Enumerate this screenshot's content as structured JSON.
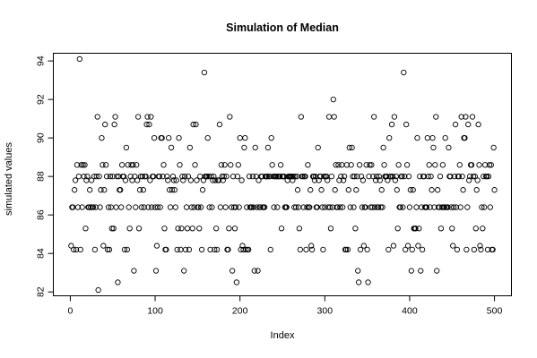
{
  "chart_data": {
    "type": "scatter",
    "title": "Simulation of Median",
    "xlabel": "Index",
    "ylabel": "simulated values",
    "xlim": [
      -20,
      520
    ],
    "ylim": [
      81.8,
      94.4
    ],
    "x_ticks": [
      0,
      100,
      200,
      300,
      400,
      500
    ],
    "y_ticks": [
      82,
      84,
      86,
      88,
      90,
      92,
      94
    ],
    "grid": false,
    "legend": "none",
    "series": [
      {
        "x": [
          1,
          2,
          3,
          4,
          5,
          6,
          7,
          8,
          9,
          10,
          11,
          12,
          13,
          14,
          15,
          16,
          17,
          18,
          19,
          20,
          21,
          22,
          23,
          24,
          25,
          26,
          27,
          28,
          29,
          30,
          31,
          32,
          33,
          34,
          35,
          36,
          37,
          38,
          39,
          40,
          41,
          42,
          43,
          44,
          45,
          46,
          47,
          48,
          49,
          50,
          51,
          52,
          53,
          54,
          55,
          56,
          57,
          58,
          59,
          60,
          61,
          62,
          63,
          64,
          65,
          66,
          67,
          68,
          69,
          70,
          71,
          72,
          73,
          74,
          75,
          76,
          77,
          78,
          79,
          80,
          81,
          82,
          83,
          84,
          85,
          86,
          87,
          88,
          89,
          90,
          91,
          92,
          93,
          94,
          95,
          96,
          97,
          98,
          99,
          100,
          101,
          102,
          103,
          104,
          105,
          106,
          107,
          108,
          109,
          110,
          111,
          112,
          113,
          114,
          115,
          116,
          117,
          118,
          119,
          120,
          121,
          122,
          123,
          124,
          125,
          126,
          127,
          128,
          129,
          130,
          131,
          132,
          133,
          134,
          135,
          136,
          137,
          138,
          139,
          140,
          141,
          142,
          143,
          144,
          145,
          146,
          147,
          148,
          149,
          150,
          151,
          152,
          153,
          154,
          155,
          156,
          157,
          158,
          159,
          160,
          161,
          162,
          163,
          164,
          165,
          166,
          167,
          168,
          169,
          170,
          171,
          172,
          173,
          174,
          175,
          176,
          177,
          178,
          179,
          180,
          181,
          182,
          183,
          184,
          185,
          186,
          187,
          188,
          189,
          190,
          191,
          192,
          193,
          194,
          195,
          196,
          197,
          198,
          199,
          200,
          201,
          202,
          203,
          204,
          205,
          206,
          207,
          208,
          209,
          210,
          211,
          212,
          213,
          214,
          215,
          216,
          217,
          218,
          219,
          220,
          221,
          222,
          223,
          224,
          225,
          226,
          227,
          228,
          229,
          230,
          231,
          232,
          233,
          234,
          235,
          236,
          237,
          238,
          239,
          240,
          241,
          242,
          243,
          244,
          245,
          246,
          247,
          248,
          249,
          250,
          251,
          252,
          253,
          254,
          255,
          256,
          257,
          258,
          259,
          260,
          261,
          262,
          263,
          264,
          265,
          266,
          267,
          268,
          269,
          270,
          271,
          272,
          273,
          274,
          275,
          276,
          277,
          278,
          279,
          280,
          281,
          282,
          283,
          284,
          285,
          286,
          287,
          288,
          289,
          290,
          291,
          292,
          293,
          294,
          295,
          296,
          297,
          298,
          299,
          300,
          301,
          302,
          303,
          304,
          305,
          306,
          307,
          308,
          309,
          310,
          311,
          312,
          313,
          314,
          315,
          316,
          317,
          318,
          319,
          320,
          321,
          322,
          323,
          324,
          325,
          326,
          327,
          328,
          329,
          330,
          331,
          332,
          333,
          334,
          335,
          336,
          337,
          338,
          339,
          340,
          341,
          342,
          343,
          344,
          345,
          346,
          347,
          348,
          349,
          350,
          351,
          352,
          353,
          354,
          355,
          356,
          357,
          358,
          359,
          360,
          361,
          362,
          363,
          364,
          365,
          366,
          367,
          368,
          369,
          370,
          371,
          372,
          373,
          374,
          375,
          376,
          377,
          378,
          379,
          380,
          381,
          382,
          383,
          384,
          385,
          386,
          387,
          388,
          389,
          390,
          391,
          392,
          393,
          394,
          395,
          396,
          397,
          398,
          399,
          400,
          401,
          402,
          403,
          404,
          405,
          406,
          407,
          408,
          409,
          410,
          411,
          412,
          413,
          414,
          415,
          416,
          417,
          418,
          419,
          420,
          421,
          422,
          423,
          424,
          425,
          426,
          427,
          428,
          429,
          430,
          431,
          432,
          433,
          434,
          435,
          436,
          437,
          438,
          439,
          440,
          441,
          442,
          443,
          444,
          445,
          446,
          447,
          448,
          449,
          450,
          451,
          452,
          453,
          454,
          455,
          456,
          457,
          458,
          459,
          460,
          461,
          462,
          463,
          464,
          465,
          466,
          467,
          468,
          469,
          470,
          471,
          472,
          473,
          474,
          475,
          476,
          477,
          478,
          479,
          480,
          481,
          482,
          483,
          484,
          485,
          486,
          487,
          488,
          489,
          490,
          491,
          492,
          493,
          494,
          495,
          496,
          497,
          498,
          499,
          500
        ],
        "y": [
          84.4,
          86.4,
          86.4,
          84.2,
          87.3,
          87.8,
          84.2,
          88.6,
          86.4,
          88.0,
          94.1,
          84.2,
          88.6,
          86.4,
          88.6,
          88.0,
          88.6,
          85.3,
          87.8,
          88.0,
          86.4,
          86.4,
          87.3,
          86.4,
          87.8,
          86.4,
          86.4,
          88.0,
          84.2,
          86.4,
          88.0,
          91.1,
          82.1,
          88.0,
          86.4,
          87.3,
          90.0,
          88.6,
          84.4,
          87.3,
          90.7,
          88.6,
          88.0,
          84.2,
          86.4,
          84.2,
          88.0,
          86.4,
          85.3,
          88.0,
          85.3,
          90.7,
          91.1,
          86.4,
          88.0,
          82.5,
          88.0,
          87.3,
          87.3,
          86.4,
          88.6,
          88.0,
          88.0,
          84.2,
          87.8,
          89.5,
          84.2,
          88.6,
          86.4,
          85.3,
          88.0,
          88.6,
          87.8,
          88.6,
          83.1,
          88.0,
          86.4,
          88.6,
          87.8,
          91.1,
          85.3,
          87.3,
          88.0,
          86.4,
          88.0,
          87.3,
          86.4,
          88.0,
          88.0,
          90.7,
          91.1,
          86.4,
          90.7,
          87.8,
          91.1,
          86.4,
          88.0,
          88.0,
          90.0,
          86.4,
          83.1,
          84.4,
          86.4,
          88.0,
          88.0,
          86.4,
          90.0,
          90.0,
          88.0,
          88.6,
          85.3,
          84.2,
          84.2,
          88.0,
          87.8,
          90.0,
          87.3,
          86.4,
          89.5,
          87.3,
          88.0,
          87.8,
          87.3,
          86.4,
          87.8,
          84.2,
          85.3,
          90.0,
          88.6,
          84.2,
          85.3,
          88.0,
          87.8,
          83.1,
          88.0,
          84.2,
          86.4,
          85.3,
          88.0,
          84.2,
          89.5,
          87.8,
          86.4,
          85.3,
          90.7,
          86.4,
          88.6,
          90.7,
          87.8,
          86.4,
          86.4,
          85.3,
          88.0,
          86.4,
          84.2,
          87.3,
          87.8,
          93.4,
          88.0,
          88.0,
          88.0,
          90.0,
          88.0,
          86.4,
          84.2,
          88.0,
          86.4,
          87.8,
          88.0,
          84.2,
          87.8,
          85.3,
          84.2,
          87.8,
          87.8,
          90.7,
          86.4,
          88.6,
          88.0,
          87.8,
          88.0,
          88.6,
          86.4,
          88.0,
          84.2,
          84.2,
          85.3,
          91.1,
          88.6,
          86.4,
          83.1,
          88.0,
          86.4,
          85.3,
          86.4,
          82.5,
          88.0,
          88.6,
          86.4,
          90.0,
          84.2,
          87.8,
          84.4,
          84.2,
          89.5,
          90.0,
          84.2,
          86.4,
          84.2,
          84.2,
          88.0,
          86.4,
          86.4,
          86.4,
          88.0,
          86.4,
          83.1,
          89.5,
          88.0,
          86.4,
          83.1,
          87.8,
          86.4,
          86.4,
          88.0,
          88.0,
          86.4,
          86.4,
          86.4,
          88.0,
          88.0,
          88.0,
          89.5,
          88.0,
          88.0,
          84.2,
          90.0,
          88.6,
          88.0,
          86.4,
          88.0,
          88.0,
          88.0,
          86.4,
          88.0,
          88.0,
          88.0,
          88.6,
          85.3,
          88.0,
          88.0,
          88.0,
          86.4,
          86.4,
          86.4,
          87.8,
          88.0,
          88.0,
          88.0,
          88.0,
          88.0,
          87.8,
          88.0,
          86.4,
          88.0,
          86.4,
          88.0,
          87.3,
          86.4,
          85.3,
          84.2,
          91.1,
          88.0,
          88.0,
          86.4,
          88.0,
          88.0,
          84.2,
          86.4,
          88.6,
          86.4,
          86.4,
          87.3,
          84.4,
          84.2,
          88.0,
          88.0,
          87.8,
          88.0,
          86.4,
          86.4,
          89.5,
          87.8,
          88.0,
          88.0,
          87.3,
          86.4,
          84.2,
          88.0,
          86.4,
          88.0,
          88.0,
          87.8,
          86.4,
          91.1,
          86.4,
          85.3,
          88.0,
          86.4,
          92.0,
          91.1,
          87.3,
          88.6,
          86.4,
          86.4,
          88.6,
          87.8,
          86.4,
          88.0,
          88.6,
          86.4,
          87.8,
          88.0,
          84.2,
          84.2,
          88.6,
          84.2,
          87.3,
          89.5,
          86.4,
          88.6,
          89.5,
          88.0,
          86.4,
          88.0,
          85.3,
          87.3,
          88.0,
          83.1,
          82.5,
          88.6,
          84.2,
          88.0,
          86.4,
          87.8,
          84.4,
          86.4,
          86.4,
          88.6,
          84.2,
          82.5,
          88.0,
          88.6,
          86.4,
          88.6,
          86.4,
          88.0,
          91.1,
          86.4,
          87.8,
          88.0,
          86.4,
          86.4,
          88.0,
          87.8,
          86.4,
          87.3,
          86.4,
          89.5,
          88.6,
          88.0,
          88.0,
          88.0,
          87.8,
          84.2,
          90.0,
          88.0,
          88.0,
          90.7,
          88.0,
          84.4,
          91.1,
          87.8,
          88.0,
          87.3,
          85.3,
          88.6,
          86.4,
          86.4,
          88.0,
          88.0,
          86.4,
          93.4,
          88.0,
          84.2,
          90.7,
          88.6,
          84.4,
          88.0,
          86.4,
          87.3,
          83.1,
          84.2,
          87.3,
          85.3,
          85.3,
          85.3,
          86.4,
          90.0,
          84.4,
          85.3,
          88.0,
          83.1,
          86.4,
          84.2,
          88.0,
          88.0,
          86.4,
          86.4,
          86.4,
          90.0,
          88.0,
          88.6,
          86.4,
          88.0,
          87.3,
          90.0,
          89.5,
          86.4,
          88.6,
          91.1,
          83.1,
          87.3,
          86.4,
          86.4,
          88.0,
          85.3,
          86.4,
          88.6,
          86.4,
          86.4,
          90.0,
          86.4,
          86.4,
          86.4,
          89.5,
          88.0,
          88.0,
          86.4,
          85.3,
          84.4,
          86.4,
          88.0,
          90.7,
          86.4,
          84.2,
          88.0,
          88.0,
          88.6,
          86.4,
          91.1,
          88.0,
          87.3,
          90.0,
          90.0,
          91.1,
          84.2,
          86.4,
          90.7,
          87.8,
          88.0,
          88.6,
          88.6,
          91.1,
          88.0,
          84.2,
          88.0,
          85.3,
          87.3,
          87.8,
          90.7,
          88.6,
          84.4,
          84.2,
          86.4,
          85.3,
          88.0,
          86.4,
          88.6,
          88.0,
          88.0,
          84.2,
          88.0,
          88.6,
          86.4,
          88.6,
          84.2,
          84.2,
          89.5,
          87.3
        ]
      }
    ]
  }
}
